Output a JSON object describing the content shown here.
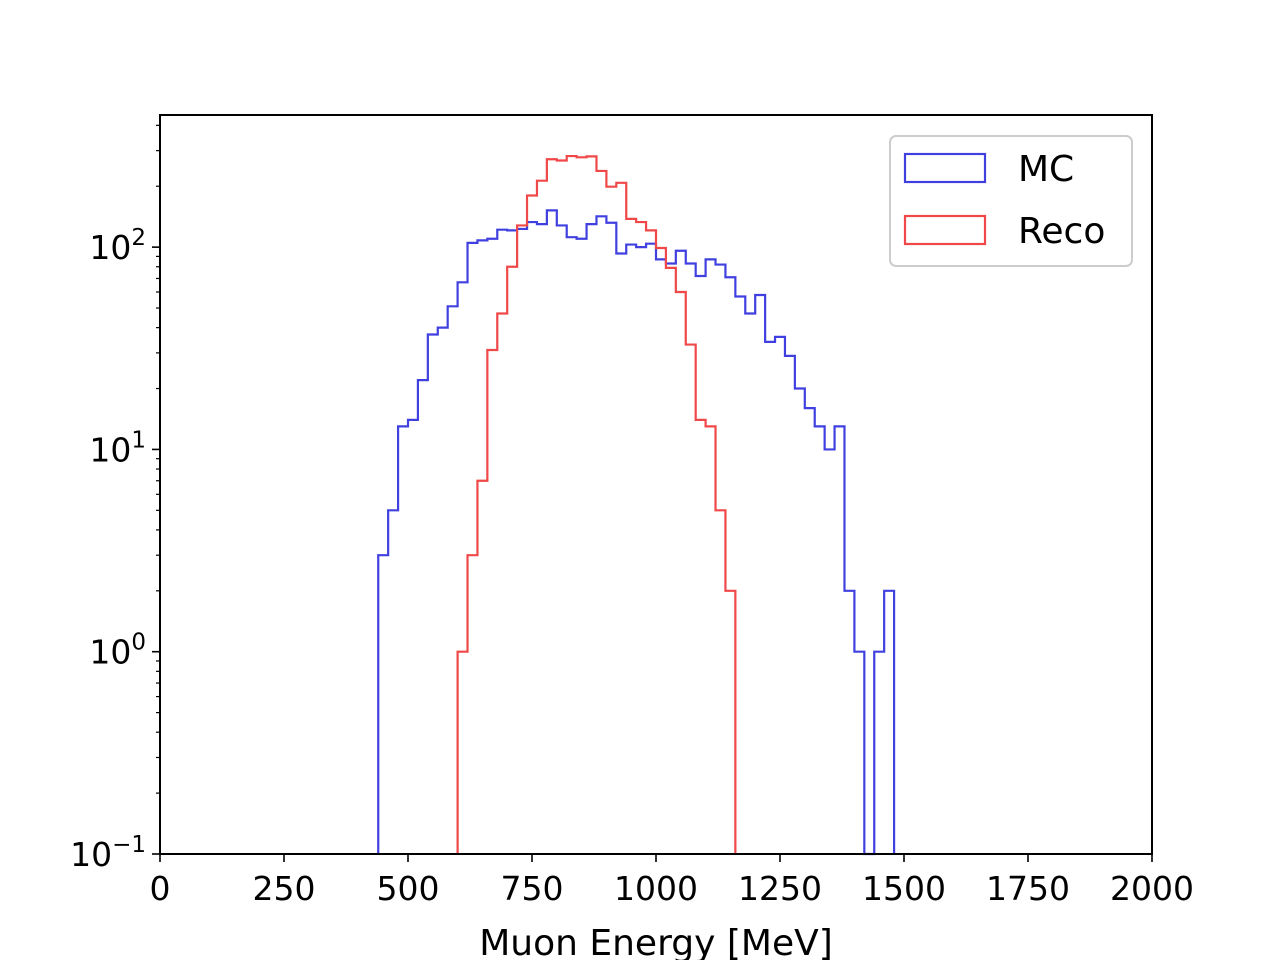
{
  "chart_data": {
    "type": "histogram",
    "title": "",
    "xlabel": "Muon Energy [MeV]",
    "ylabel": "",
    "xlim": [
      0,
      2000
    ],
    "ylim": [
      0.1,
      450
    ],
    "yscale": "log",
    "grid": false,
    "legend_position": "top-right",
    "bin_width": 20,
    "x_ticks": [
      {
        "value": 0,
        "label": "0"
      },
      {
        "value": 250,
        "label": "250"
      },
      {
        "value": 500,
        "label": "500"
      },
      {
        "value": 750,
        "label": "750"
      },
      {
        "value": 1000,
        "label": "1000"
      },
      {
        "value": 1250,
        "label": "1250"
      },
      {
        "value": 1500,
        "label": "1500"
      },
      {
        "value": 1750,
        "label": "1750"
      },
      {
        "value": 2000,
        "label": "2000"
      }
    ],
    "y_ticks": [
      {
        "value": 0.1,
        "base": "10",
        "exp": "−1"
      },
      {
        "value": 1,
        "base": "10",
        "exp": "0"
      },
      {
        "value": 10,
        "base": "10",
        "exp": "1"
      },
      {
        "value": 100,
        "base": "10",
        "exp": "2"
      }
    ],
    "series": [
      {
        "name": "MC",
        "color": "#4040e0",
        "bins": [
          [
            440,
            3
          ],
          [
            460,
            5
          ],
          [
            480,
            13
          ],
          [
            500,
            14
          ],
          [
            520,
            22
          ],
          [
            540,
            37
          ],
          [
            560,
            40
          ],
          [
            580,
            51
          ],
          [
            600,
            67
          ],
          [
            620,
            105
          ],
          [
            640,
            108
          ],
          [
            660,
            110
          ],
          [
            680,
            122
          ],
          [
            700,
            121
          ],
          [
            720,
            123
          ],
          [
            740,
            133
          ],
          [
            760,
            130
          ],
          [
            780,
            152
          ],
          [
            800,
            128
          ],
          [
            820,
            112
          ],
          [
            840,
            110
          ],
          [
            860,
            130
          ],
          [
            880,
            142
          ],
          [
            900,
            132
          ],
          [
            920,
            93
          ],
          [
            940,
            103
          ],
          [
            960,
            100
          ],
          [
            980,
            104
          ],
          [
            1000,
            87
          ],
          [
            1020,
            83
          ],
          [
            1040,
            96
          ],
          [
            1060,
            83
          ],
          [
            1080,
            72
          ],
          [
            1100,
            87
          ],
          [
            1120,
            82
          ],
          [
            1140,
            71
          ],
          [
            1160,
            57
          ],
          [
            1180,
            47
          ],
          [
            1200,
            58
          ],
          [
            1220,
            34
          ],
          [
            1240,
            36
          ],
          [
            1260,
            29
          ],
          [
            1280,
            20
          ],
          [
            1300,
            16
          ],
          [
            1320,
            13
          ],
          [
            1340,
            10
          ],
          [
            1360,
            13
          ],
          [
            1380,
            2
          ],
          [
            1400,
            1
          ],
          [
            1420,
            0
          ],
          [
            1440,
            1
          ],
          [
            1460,
            2
          ]
        ]
      },
      {
        "name": "Reco",
        "color": "#f04848",
        "bins": [
          [
            600,
            1
          ],
          [
            620,
            3
          ],
          [
            640,
            7
          ],
          [
            660,
            31
          ],
          [
            680,
            47
          ],
          [
            700,
            80
          ],
          [
            720,
            128
          ],
          [
            740,
            180
          ],
          [
            760,
            213
          ],
          [
            780,
            272
          ],
          [
            800,
            268
          ],
          [
            820,
            282
          ],
          [
            840,
            278
          ],
          [
            860,
            281
          ],
          [
            880,
            238
          ],
          [
            900,
            199
          ],
          [
            920,
            208
          ],
          [
            940,
            138
          ],
          [
            960,
            133
          ],
          [
            980,
            121
          ],
          [
            1000,
            99
          ],
          [
            1020,
            79
          ],
          [
            1040,
            60
          ],
          [
            1060,
            33
          ],
          [
            1080,
            14
          ],
          [
            1100,
            13
          ],
          [
            1120,
            5
          ],
          [
            1140,
            2
          ]
        ]
      }
    ]
  }
}
